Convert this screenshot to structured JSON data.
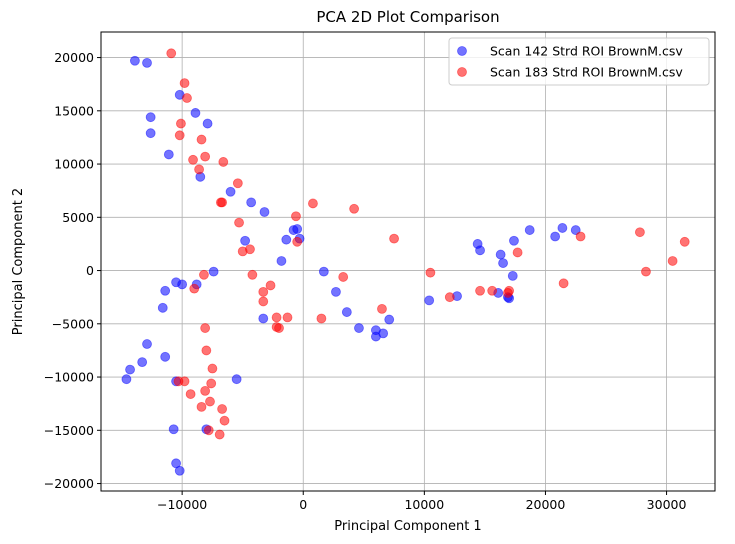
{
  "chart_data": {
    "type": "scatter",
    "title": "PCA 2D Plot Comparison",
    "xlabel": "Principal Component 1",
    "ylabel": "Principal Component 2",
    "xlim": [
      -16700,
      34000
    ],
    "ylim": [
      -20700,
      22400
    ],
    "xticks": [
      -10000,
      0,
      10000,
      20000,
      30000
    ],
    "yticks": [
      -20000,
      -15000,
      -10000,
      -5000,
      0,
      5000,
      10000,
      15000,
      20000
    ],
    "grid": true,
    "legend_position": "top-right",
    "series": [
      {
        "name": "Scan 142 Strd ROI BrownM.csv",
        "color": "#0000ff",
        "alpha": 0.55,
        "points": [
          [
            -13900,
            19700
          ],
          [
            -12900,
            19500
          ],
          [
            -10200,
            16500
          ],
          [
            -12600,
            14400
          ],
          [
            -8900,
            14800
          ],
          [
            -7900,
            13800
          ],
          [
            -12600,
            12900
          ],
          [
            -11100,
            10900
          ],
          [
            -8500,
            8800
          ],
          [
            -6000,
            7400
          ],
          [
            -4300,
            6400
          ],
          [
            -3200,
            5500
          ],
          [
            -800,
            3800
          ],
          [
            -500,
            3900
          ],
          [
            -4800,
            2800
          ],
          [
            -1400,
            2900
          ],
          [
            -300,
            3000
          ],
          [
            -1800,
            900
          ],
          [
            1700,
            -100
          ],
          [
            -7400,
            -100
          ],
          [
            -10500,
            -1100
          ],
          [
            -10000,
            -1300
          ],
          [
            -11400,
            -1900
          ],
          [
            -8800,
            -1300
          ],
          [
            2700,
            -2000
          ],
          [
            -11600,
            -3500
          ],
          [
            -3300,
            -4500
          ],
          [
            3600,
            -3900
          ],
          [
            4600,
            -5400
          ],
          [
            6000,
            -5600
          ],
          [
            6000,
            -6200
          ],
          [
            6600,
            -5900
          ],
          [
            7100,
            -4600
          ],
          [
            10400,
            -2800
          ],
          [
            12700,
            -2400
          ],
          [
            14400,
            2500
          ],
          [
            14600,
            1900
          ],
          [
            16300,
            1500
          ],
          [
            16500,
            700
          ],
          [
            16100,
            -2100
          ],
          [
            16900,
            -2500
          ],
          [
            17000,
            -2600
          ],
          [
            17300,
            -500
          ],
          [
            17400,
            2800
          ],
          [
            18700,
            3800
          ],
          [
            20800,
            3200
          ],
          [
            21400,
            4000
          ],
          [
            22500,
            3800
          ],
          [
            -12900,
            -6900
          ],
          [
            -11400,
            -8100
          ],
          [
            -13300,
            -8600
          ],
          [
            -14300,
            -9300
          ],
          [
            -14600,
            -10200
          ],
          [
            -10500,
            -10400
          ],
          [
            -5500,
            -10200
          ],
          [
            -10700,
            -14900
          ],
          [
            -8000,
            -14900
          ],
          [
            -10500,
            -18100
          ],
          [
            -10200,
            -18800
          ]
        ]
      },
      {
        "name": "Scan 183 Strd ROI BrownM.csv",
        "color": "#ff0000",
        "alpha": 0.55,
        "points": [
          [
            -10900,
            20400
          ],
          [
            -9800,
            17600
          ],
          [
            -9600,
            16200
          ],
          [
            -10100,
            13800
          ],
          [
            -10200,
            12700
          ],
          [
            -8400,
            12300
          ],
          [
            -8100,
            10700
          ],
          [
            -9100,
            10400
          ],
          [
            -8600,
            9500
          ],
          [
            -6600,
            10200
          ],
          [
            -5400,
            8200
          ],
          [
            -6700,
            6400
          ],
          [
            -6800,
            6400
          ],
          [
            -5300,
            4500
          ],
          [
            -5000,
            1800
          ],
          [
            -4400,
            2000
          ],
          [
            -600,
            5100
          ],
          [
            -500,
            2700
          ],
          [
            800,
            6300
          ],
          [
            4200,
            5800
          ],
          [
            7500,
            3000
          ],
          [
            10500,
            -200
          ],
          [
            12100,
            -2500
          ],
          [
            14600,
            -1900
          ],
          [
            15600,
            -1900
          ],
          [
            16900,
            -2100
          ],
          [
            17000,
            -1900
          ],
          [
            17700,
            1700
          ],
          [
            21500,
            -1200
          ],
          [
            22900,
            3200
          ],
          [
            27800,
            3600
          ],
          [
            28300,
            -100
          ],
          [
            30500,
            900
          ],
          [
            31500,
            2700
          ],
          [
            3300,
            -600
          ],
          [
            6500,
            -3600
          ],
          [
            1500,
            -4500
          ],
          [
            -1300,
            -4400
          ],
          [
            -2200,
            -4400
          ],
          [
            -2000,
            -5400
          ],
          [
            -2200,
            -5300
          ],
          [
            -2700,
            -1400
          ],
          [
            -3300,
            -2000
          ],
          [
            -3300,
            -2900
          ],
          [
            -4200,
            -400
          ],
          [
            -8200,
            -400
          ],
          [
            -9000,
            -1700
          ],
          [
            -8100,
            -5400
          ],
          [
            -8000,
            -7500
          ],
          [
            -7500,
            -9200
          ],
          [
            -9800,
            -10400
          ],
          [
            -10300,
            -10400
          ],
          [
            -7600,
            -10600
          ],
          [
            -8100,
            -11300
          ],
          [
            -9300,
            -11600
          ],
          [
            -8400,
            -12800
          ],
          [
            -7700,
            -12300
          ],
          [
            -6700,
            -13000
          ],
          [
            -6500,
            -14100
          ],
          [
            -7800,
            -15000
          ],
          [
            -6900,
            -15400
          ]
        ]
      }
    ]
  }
}
